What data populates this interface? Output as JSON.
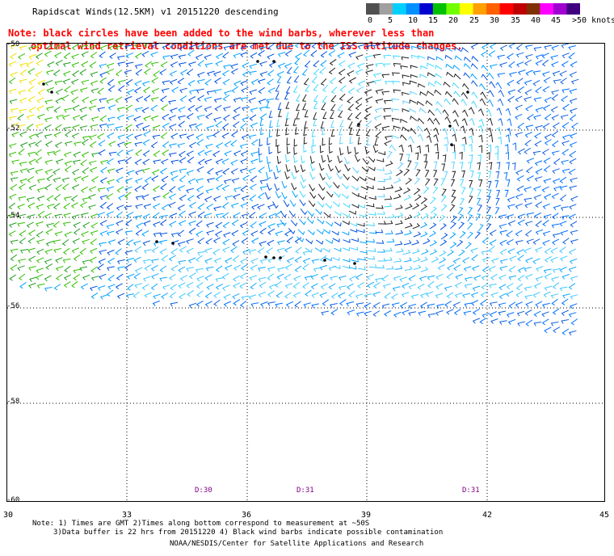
{
  "title": "Rapidscat Winds(12.5KM) v1 20151220 descending",
  "note_line1": "Note: black circles have been added to the wind barbs, wherever less than",
  "note_line2": "optimal wind retrieval conditions are met due to the ISS altitude changes.",
  "legend": {
    "labels": [
      "0",
      "5",
      "10",
      "15",
      "20",
      "25",
      "30",
      "35",
      "40",
      "45",
      ">50 knots"
    ],
    "colors": [
      "#505050",
      "#a0a0a0",
      "#00d0ff",
      "#0090ff",
      "#0000d0",
      "#00c000",
      "#70ff00",
      "#ffff00",
      "#ffa000",
      "#ff6000",
      "#ff0000",
      "#c00000",
      "#803000",
      "#ff00ff",
      "#a000d0",
      "#400080"
    ]
  },
  "axes": {
    "y_labels": [
      "-50",
      "-52",
      "-54",
      "-56",
      "-58",
      "-60"
    ],
    "x_labels": [
      "30",
      "33",
      "36",
      "39",
      "42",
      "45"
    ]
  },
  "time_labels": [
    "D:30",
    "D:31",
    "D:31"
  ],
  "footer": {
    "line1": "Note: 1) Times are GMT 2)Times along bottom correspond to measurement at ~50S",
    "line2": "3)Data buffer is 22 hrs from 20151220 4) Black wind barbs indicate possible contamination",
    "line3": "NOAA/NESDIS/Center for Satellite Applications and Research"
  }
}
